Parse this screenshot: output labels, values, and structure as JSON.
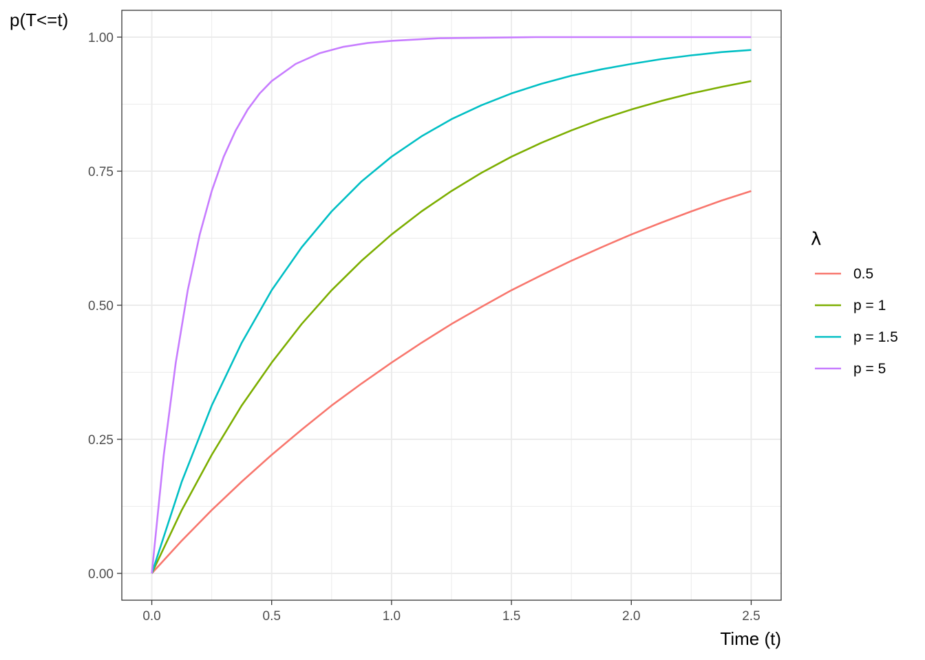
{
  "chart_data": {
    "type": "line",
    "title": "",
    "xlabel": "Time (t)",
    "ylabel": "p(T<=t)",
    "xlim": [
      -0.125,
      2.625
    ],
    "ylim": [
      -0.05,
      1.05
    ],
    "x_ticks": [
      0.0,
      0.5,
      1.0,
      1.5,
      2.0,
      2.5
    ],
    "x_tick_labels": [
      "0.0",
      "0.5",
      "1.0",
      "1.5",
      "2.0",
      "2.5"
    ],
    "y_ticks": [
      0.0,
      0.25,
      0.5,
      0.75,
      1.0
    ],
    "y_tick_labels": [
      "0.00",
      "0.25",
      "0.50",
      "0.75",
      "1.00"
    ],
    "grid": true,
    "legend": {
      "title": "λ",
      "position": "right"
    },
    "series": [
      {
        "name": "0.5",
        "color": "#F8766D",
        "x": [
          0,
          0.125,
          0.25,
          0.375,
          0.5,
          0.625,
          0.75,
          0.875,
          1.0,
          1.125,
          1.25,
          1.375,
          1.5,
          1.625,
          1.75,
          1.875,
          2.0,
          2.125,
          2.25,
          2.375,
          2.5
        ],
        "y": [
          0,
          0.061,
          0.118,
          0.171,
          0.221,
          0.268,
          0.313,
          0.354,
          0.393,
          0.43,
          0.465,
          0.497,
          0.528,
          0.556,
          0.583,
          0.608,
          0.632,
          0.654,
          0.675,
          0.695,
          0.713
        ]
      },
      {
        "name": "p = 1",
        "color": "#7CAE00",
        "x": [
          0,
          0.125,
          0.25,
          0.375,
          0.5,
          0.625,
          0.75,
          0.875,
          1.0,
          1.125,
          1.25,
          1.375,
          1.5,
          1.625,
          1.75,
          1.875,
          2.0,
          2.125,
          2.25,
          2.375,
          2.5
        ],
        "y": [
          0,
          0.118,
          0.221,
          0.313,
          0.393,
          0.465,
          0.528,
          0.583,
          0.632,
          0.675,
          0.713,
          0.747,
          0.777,
          0.803,
          0.826,
          0.847,
          0.865,
          0.881,
          0.895,
          0.907,
          0.918
        ]
      },
      {
        "name": "p = 1.5",
        "color": "#00BFC4",
        "x": [
          0,
          0.125,
          0.25,
          0.375,
          0.5,
          0.625,
          0.75,
          0.875,
          1.0,
          1.125,
          1.25,
          1.375,
          1.5,
          1.625,
          1.75,
          1.875,
          2.0,
          2.125,
          2.25,
          2.375,
          2.5
        ],
        "y": [
          0,
          0.171,
          0.313,
          0.43,
          0.528,
          0.608,
          0.675,
          0.731,
          0.777,
          0.815,
          0.847,
          0.873,
          0.895,
          0.913,
          0.928,
          0.94,
          0.95,
          0.959,
          0.966,
          0.972,
          0.976
        ]
      },
      {
        "name": "p = 5",
        "color": "#C77CFF",
        "x": [
          0,
          0.05,
          0.1,
          0.15,
          0.2,
          0.25,
          0.3,
          0.35,
          0.4,
          0.45,
          0.5,
          0.6,
          0.7,
          0.8,
          0.9,
          1.0,
          1.2,
          1.4,
          1.6,
          1.8,
          2.0,
          2.25,
          2.5
        ],
        "y": [
          0,
          0.221,
          0.393,
          0.528,
          0.632,
          0.713,
          0.777,
          0.826,
          0.865,
          0.895,
          0.918,
          0.95,
          0.97,
          0.982,
          0.989,
          0.993,
          0.998,
          0.999,
          1.0,
          1.0,
          1.0,
          1.0,
          1.0
        ]
      }
    ]
  }
}
